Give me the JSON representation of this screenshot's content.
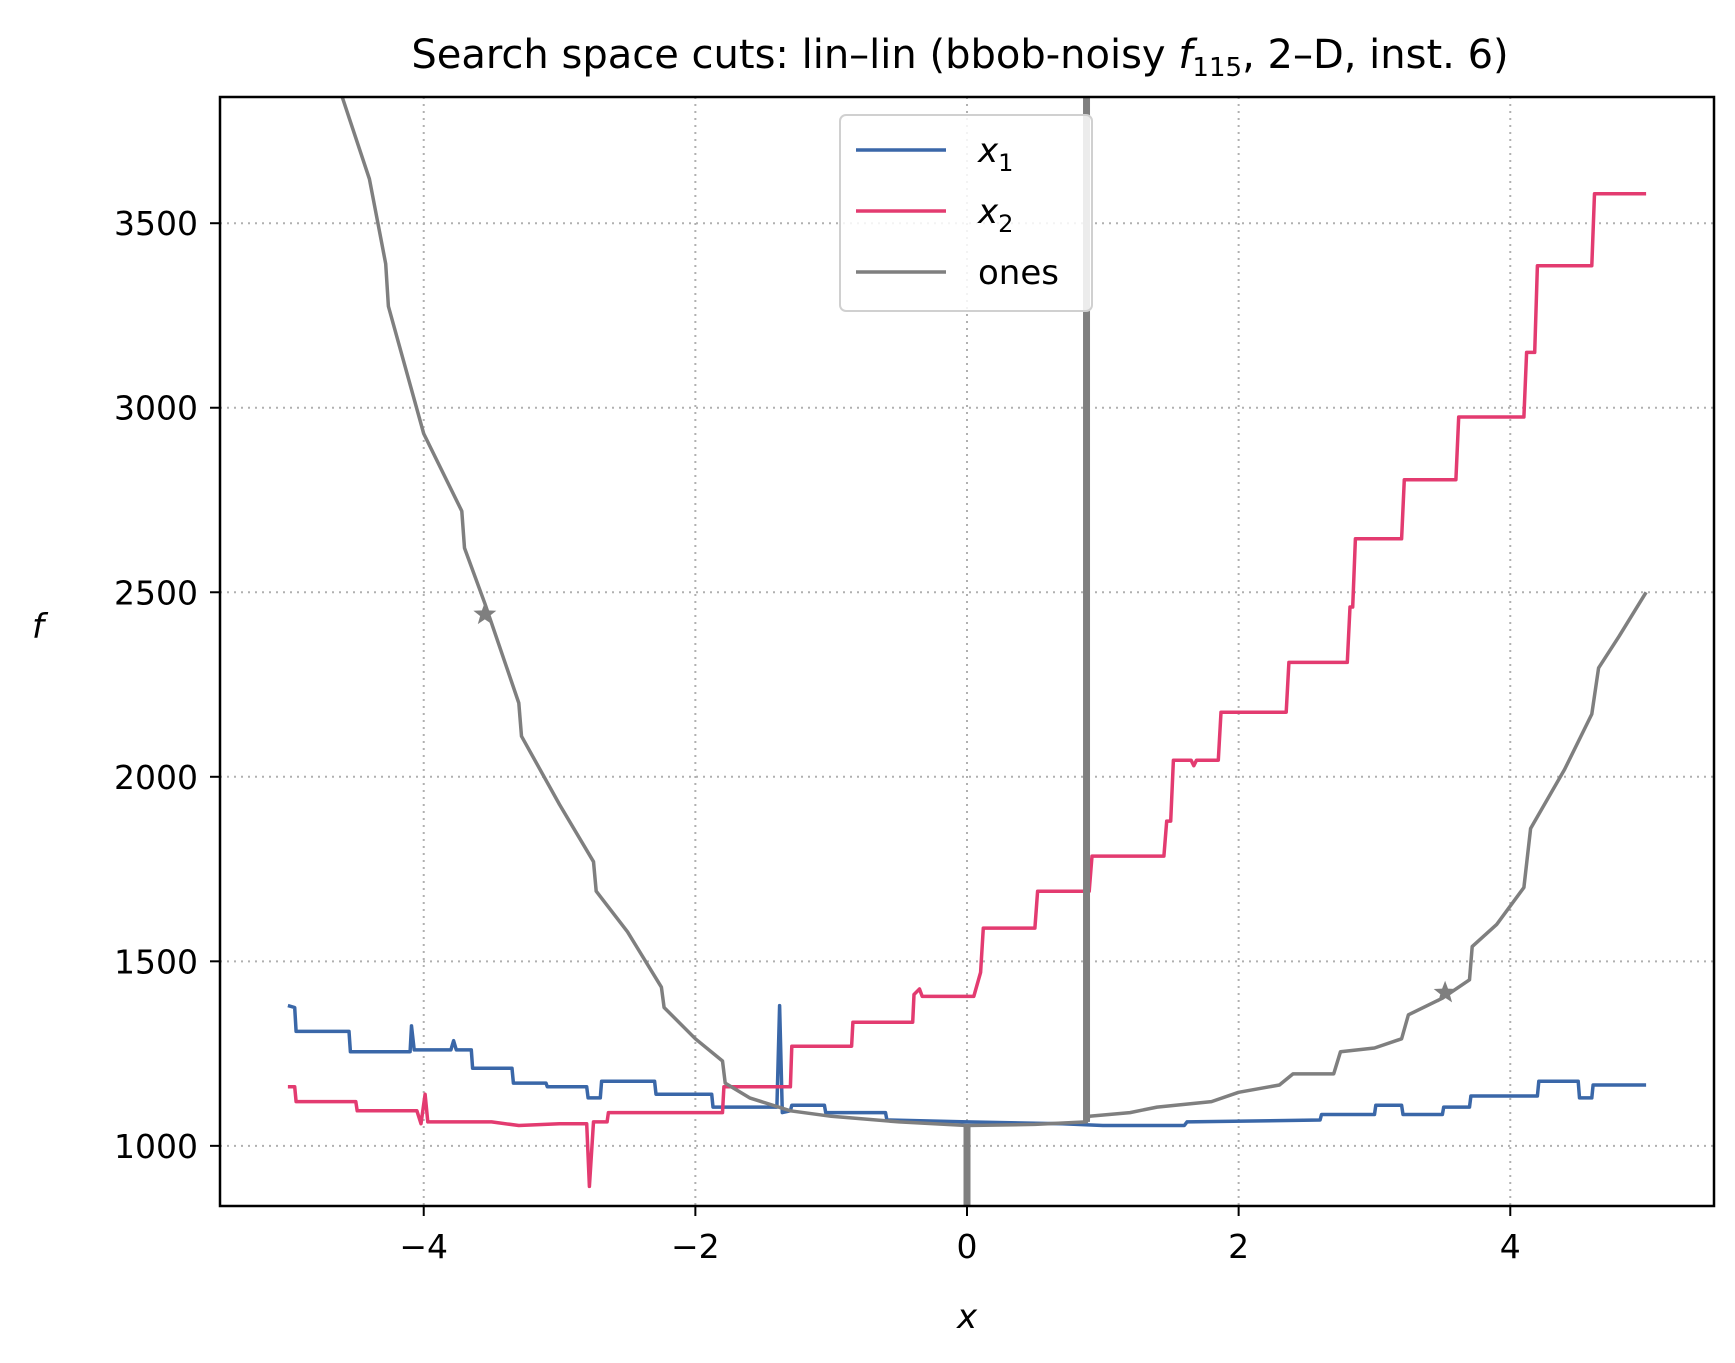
{
  "chart_data": {
    "type": "line",
    "title": "Search space cuts: lin–lin (bbob-noisy f115, 2–D, inst. 6)",
    "title_parts": {
      "pre": "Search space cuts: lin–lin (bbob-noisy ",
      "f": "f",
      "sub": "115",
      "post": ", 2–D, inst. 6)"
    },
    "xlabel": "x",
    "ylabel": "f",
    "xlim": [
      -5.5,
      5.5
    ],
    "ylim": [
      837,
      3842
    ],
    "xticks": [
      -4,
      -2,
      0,
      2,
      4
    ],
    "xtick_labels": [
      "−4",
      "−2",
      "0",
      "2",
      "4"
    ],
    "yticks": [
      1000,
      1500,
      2000,
      2500,
      3000,
      3500
    ],
    "ytick_labels": [
      "1000",
      "1500",
      "2000",
      "2500",
      "3000",
      "3500"
    ],
    "grid": true,
    "legend_position": "top-center",
    "series": [
      {
        "name": "x1",
        "label_base": "x",
        "label_sub": "1",
        "color": "#3a67a8",
        "points": [
          [
            -5.0,
            1380
          ],
          [
            -4.95,
            1375
          ],
          [
            -4.94,
            1310
          ],
          [
            -4.55,
            1310
          ],
          [
            -4.54,
            1255
          ],
          [
            -4.1,
            1255
          ],
          [
            -4.09,
            1325
          ],
          [
            -4.07,
            1260
          ],
          [
            -3.8,
            1260
          ],
          [
            -3.78,
            1285
          ],
          [
            -3.76,
            1260
          ],
          [
            -3.65,
            1260
          ],
          [
            -3.64,
            1210
          ],
          [
            -3.35,
            1210
          ],
          [
            -3.34,
            1170
          ],
          [
            -3.1,
            1170
          ],
          [
            -3.09,
            1160
          ],
          [
            -2.8,
            1160
          ],
          [
            -2.79,
            1130
          ],
          [
            -2.7,
            1130
          ],
          [
            -2.69,
            1175
          ],
          [
            -2.3,
            1175
          ],
          [
            -2.29,
            1140
          ],
          [
            -1.88,
            1140
          ],
          [
            -1.87,
            1105
          ],
          [
            -1.4,
            1105
          ],
          [
            -1.38,
            1380
          ],
          [
            -1.36,
            1090
          ],
          [
            -1.3,
            1095
          ],
          [
            -1.29,
            1110
          ],
          [
            -1.05,
            1110
          ],
          [
            -1.04,
            1090
          ],
          [
            -0.6,
            1090
          ],
          [
            -0.59,
            1070
          ],
          [
            0.0,
            1065
          ],
          [
            0.7,
            1060
          ],
          [
            1.0,
            1055
          ],
          [
            1.6,
            1055
          ],
          [
            1.62,
            1065
          ],
          [
            2.6,
            1070
          ],
          [
            2.61,
            1085
          ],
          [
            3.0,
            1085
          ],
          [
            3.01,
            1110
          ],
          [
            3.2,
            1110
          ],
          [
            3.21,
            1085
          ],
          [
            3.5,
            1085
          ],
          [
            3.51,
            1105
          ],
          [
            3.7,
            1105
          ],
          [
            3.71,
            1135
          ],
          [
            4.2,
            1135
          ],
          [
            4.21,
            1175
          ],
          [
            4.5,
            1175
          ],
          [
            4.51,
            1130
          ],
          [
            4.6,
            1130
          ],
          [
            4.61,
            1165
          ],
          [
            5.0,
            1165
          ]
        ]
      },
      {
        "name": "x2",
        "label_base": "x",
        "label_sub": "2",
        "color": "#e33b70",
        "points": [
          [
            -5.0,
            1160
          ],
          [
            -4.95,
            1160
          ],
          [
            -4.94,
            1120
          ],
          [
            -4.5,
            1120
          ],
          [
            -4.49,
            1095
          ],
          [
            -4.05,
            1095
          ],
          [
            -4.02,
            1060
          ],
          [
            -3.99,
            1140
          ],
          [
            -3.97,
            1065
          ],
          [
            -3.5,
            1065
          ],
          [
            -3.3,
            1055
          ],
          [
            -3.0,
            1060
          ],
          [
            -2.8,
            1060
          ],
          [
            -2.78,
            890
          ],
          [
            -2.75,
            1065
          ],
          [
            -2.65,
            1065
          ],
          [
            -2.64,
            1090
          ],
          [
            -1.8,
            1090
          ],
          [
            -1.79,
            1160
          ],
          [
            -1.3,
            1160
          ],
          [
            -1.29,
            1270
          ],
          [
            -0.85,
            1270
          ],
          [
            -0.84,
            1335
          ],
          [
            -0.4,
            1335
          ],
          [
            -0.39,
            1410
          ],
          [
            -0.35,
            1425
          ],
          [
            -0.33,
            1405
          ],
          [
            0.05,
            1405
          ],
          [
            0.1,
            1470
          ],
          [
            0.12,
            1590
          ],
          [
            0.5,
            1590
          ],
          [
            0.52,
            1690
          ],
          [
            0.9,
            1690
          ],
          [
            0.92,
            1785
          ],
          [
            1.45,
            1785
          ],
          [
            1.47,
            1880
          ],
          [
            1.5,
            1880
          ],
          [
            1.52,
            2045
          ],
          [
            1.65,
            2045
          ],
          [
            1.67,
            2030
          ],
          [
            1.69,
            2045
          ],
          [
            1.85,
            2045
          ],
          [
            1.87,
            2175
          ],
          [
            2.35,
            2175
          ],
          [
            2.37,
            2310
          ],
          [
            2.8,
            2310
          ],
          [
            2.82,
            2460
          ],
          [
            2.84,
            2460
          ],
          [
            2.86,
            2645
          ],
          [
            3.2,
            2645
          ],
          [
            3.22,
            2805
          ],
          [
            3.6,
            2805
          ],
          [
            3.62,
            2975
          ],
          [
            4.1,
            2975
          ],
          [
            4.12,
            3150
          ],
          [
            4.18,
            3150
          ],
          [
            4.2,
            3385
          ],
          [
            4.6,
            3385
          ],
          [
            4.62,
            3580
          ],
          [
            5.0,
            3580
          ]
        ]
      },
      {
        "name": "ones",
        "label_base": "ones",
        "label_sub": "",
        "color": "#7f7f7f",
        "points": [
          [
            -4.6,
            3842
          ],
          [
            -4.4,
            3620
          ],
          [
            -4.28,
            3390
          ],
          [
            -4.26,
            3275
          ],
          [
            -4.0,
            2930
          ],
          [
            -3.72,
            2720
          ],
          [
            -3.7,
            2620
          ],
          [
            -3.55,
            2470
          ],
          [
            -3.3,
            2200
          ],
          [
            -3.28,
            2110
          ],
          [
            -3.0,
            1925
          ],
          [
            -2.75,
            1770
          ],
          [
            -2.73,
            1690
          ],
          [
            -2.5,
            1580
          ],
          [
            -2.25,
            1430
          ],
          [
            -2.23,
            1375
          ],
          [
            -2.0,
            1290
          ],
          [
            -1.8,
            1230
          ],
          [
            -1.78,
            1170
          ],
          [
            -1.6,
            1130
          ],
          [
            -1.3,
            1095
          ],
          [
            -1.0,
            1080
          ],
          [
            -0.5,
            1065
          ],
          [
            0.0,
            1055
          ],
          [
            0.5,
            1058
          ],
          [
            0.88,
            1065
          ],
          [
            0.9,
            1080
          ],
          [
            1.2,
            1090
          ],
          [
            1.4,
            1105
          ],
          [
            1.8,
            1120
          ],
          [
            2.0,
            1145
          ],
          [
            2.3,
            1165
          ],
          [
            2.4,
            1195
          ],
          [
            2.7,
            1195
          ],
          [
            2.75,
            1255
          ],
          [
            3.0,
            1265
          ],
          [
            3.2,
            1290
          ],
          [
            3.25,
            1355
          ],
          [
            3.5,
            1400
          ],
          [
            3.7,
            1450
          ],
          [
            3.72,
            1540
          ],
          [
            3.9,
            1600
          ],
          [
            4.1,
            1700
          ],
          [
            4.15,
            1860
          ],
          [
            4.4,
            2020
          ],
          [
            4.6,
            2170
          ],
          [
            4.65,
            2295
          ],
          [
            4.8,
            2380
          ],
          [
            5.0,
            2500
          ]
        ]
      }
    ],
    "spikes": [
      {
        "series": "ones",
        "x": 0.88,
        "y_from": 1065,
        "y_to": 3842
      },
      {
        "series": "ones",
        "x": 0.0,
        "y_from": 1055,
        "y_to": 837
      }
    ],
    "markers": [
      {
        "series": "ones",
        "x": -3.55,
        "y": 2440,
        "symbol": "star"
      },
      {
        "series": "ones",
        "x": 3.52,
        "y": 1415,
        "symbol": "star"
      }
    ]
  }
}
